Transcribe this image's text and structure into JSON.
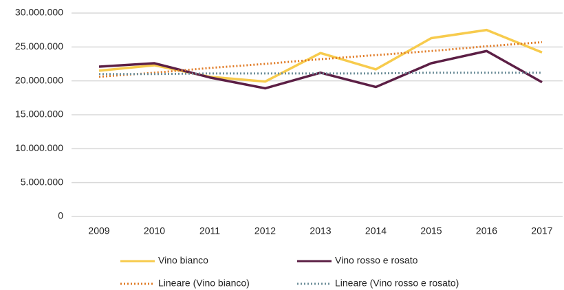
{
  "chart_data": {
    "type": "line",
    "categories": [
      "2009",
      "2010",
      "2011",
      "2012",
      "2013",
      "2014",
      "2015",
      "2016",
      "2017"
    ],
    "series": [
      {
        "name": "Vino bianco",
        "color": "#f7cb4d",
        "style": "solid",
        "values": [
          21500000,
          22300000,
          20600000,
          19900000,
          24100000,
          21700000,
          26300000,
          27500000,
          24200000
        ]
      },
      {
        "name": "Vino rosso e rosato",
        "color": "#5c1f45",
        "style": "solid",
        "values": [
          22100000,
          22600000,
          20500000,
          18900000,
          21200000,
          19100000,
          22600000,
          24400000,
          19800000
        ]
      },
      {
        "name": "Lineare  (Vino bianco)",
        "color": "#e07b26",
        "style": "dotted",
        "values": [
          20600000,
          21200000,
          21900000,
          22500000,
          23200000,
          23800000,
          24400000,
          25100000,
          25700000
        ]
      },
      {
        "name": "Lineare  (Vino rosso e rosato)",
        "color": "#6e8f9a",
        "style": "dotted",
        "values": [
          21000000,
          21000000,
          21100000,
          21100000,
          21100000,
          21100000,
          21200000,
          21200000,
          21200000
        ]
      }
    ],
    "ylim": [
      0,
      30000000
    ],
    "yticks": [
      0,
      {
        "value": 5000000,
        "label": "5.000.000"
      },
      {
        "value": 10000000,
        "label": "10.000.000"
      },
      {
        "value": 15000000,
        "label": "15.000.000"
      },
      {
        "value": 20000000,
        "label": "20.000.000"
      },
      {
        "value": 25000000,
        "label": "25.000.000"
      },
      {
        "value": 30000000,
        "label": "30.000.000"
      }
    ],
    "grid": true,
    "legend": "bottom"
  }
}
